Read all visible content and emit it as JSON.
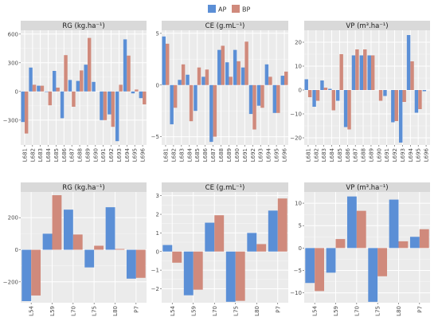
{
  "legend": {
    "items": [
      {
        "label": "AP",
        "color": "#5b8fd6"
      },
      {
        "label": "BP",
        "color": "#d08a7c"
      }
    ],
    "position": "top-center"
  },
  "chart_data": [
    {
      "type": "bar",
      "title": "RG (kg.ha⁻¹)",
      "categories": [
        "L681",
        "L682",
        "L683",
        "L684",
        "L685",
        "L686",
        "L687",
        "L688",
        "L689",
        "L690",
        "L691",
        "L692",
        "L693",
        "L694",
        "L695",
        "L696"
      ],
      "series": [
        {
          "name": "AP",
          "values": [
            -320,
            250,
            60,
            -5,
            215,
            -280,
            120,
            110,
            280,
            100,
            -300,
            -240,
            -520,
            545,
            -20,
            -70
          ]
        },
        {
          "name": "BP",
          "values": [
            -440,
            70,
            60,
            -145,
            40,
            380,
            -160,
            220,
            560,
            0,
            -300,
            -370,
            70,
            375,
            20,
            -135
          ]
        }
      ],
      "ylim": [
        -560,
        640
      ],
      "yticks": [
        -300,
        0,
        300,
        600
      ],
      "grid": true
    },
    {
      "type": "bar",
      "title": "CE (g.mL⁻¹)",
      "categories": [
        "L681",
        "L682",
        "L683",
        "L684",
        "L685",
        "L686",
        "L687",
        "L688",
        "L689",
        "L690",
        "L691",
        "L692",
        "L693",
        "L694",
        "L695",
        "L696"
      ],
      "series": [
        {
          "name": "AP",
          "values": [
            4.7,
            -3.8,
            0.5,
            1.0,
            -2.5,
            0.8,
            -5.5,
            3.4,
            2.2,
            3.4,
            1.7,
            -2.8,
            -2.0,
            2.0,
            -2.7,
            0.9
          ]
        },
        {
          "name": "BP",
          "values": [
            4.0,
            -2.2,
            2.0,
            -3.5,
            1.7,
            1.5,
            -5.0,
            3.8,
            0.8,
            2.3,
            4.2,
            -4.3,
            -2.2,
            0.8,
            -2.7,
            1.3
          ]
        }
      ],
      "ylim": [
        -5.8,
        5.3
      ],
      "yticks": [
        -5,
        0,
        5
      ],
      "grid": true
    },
    {
      "type": "bar",
      "title": "VP (m³.ha⁻¹)",
      "categories": [
        "L681",
        "L682",
        "L683",
        "L684",
        "L685",
        "L686",
        "L687",
        "L688",
        "L689",
        "L690",
        "L691",
        "L692",
        "L693",
        "L694",
        "L695",
        "L696"
      ],
      "series": [
        {
          "name": "AP",
          "values": [
            4.5,
            -7.0,
            4.0,
            0.5,
            -4.5,
            -15.5,
            14.5,
            14.5,
            14.5,
            0.0,
            -2.5,
            -13.5,
            -22.0,
            23.0,
            -9.5,
            -0.5
          ]
        },
        {
          "name": "BP",
          "values": [
            -3.0,
            -4.5,
            1.0,
            -8.5,
            15.0,
            -16.5,
            17.0,
            17.0,
            14.5,
            -4.5,
            0.0,
            -13.0,
            -5.0,
            12.0,
            -8.0,
            0.0
          ]
        }
      ],
      "ylim": [
        -23,
        25
      ],
      "yticks": [
        -20,
        -10,
        0,
        10,
        20
      ],
      "grid": true
    },
    {
      "type": "bar",
      "title": "RG (kg.ha⁻¹)",
      "categories": [
        "L54",
        "L59",
        "L70",
        "L75",
        "L80",
        "P7"
      ],
      "series": [
        {
          "name": "AP",
          "values": [
            -320,
            100,
            250,
            -110,
            265,
            -180
          ]
        },
        {
          "name": "BP",
          "values": [
            -285,
            340,
            95,
            25,
            5,
            -175
          ]
        }
      ],
      "ylim": [
        -330,
        360
      ],
      "yticks": [
        -200,
        0,
        200
      ],
      "grid": true
    },
    {
      "type": "bar",
      "title": "CE (g.mL⁻¹)",
      "categories": [
        "L54",
        "L59",
        "L70",
        "L75",
        "L80",
        "P7"
      ],
      "series": [
        {
          "name": "AP",
          "values": [
            0.35,
            -2.35,
            1.55,
            -2.7,
            1.0,
            2.2
          ]
        },
        {
          "name": "BP",
          "values": [
            -0.6,
            -2.05,
            1.95,
            -2.65,
            0.4,
            2.85
          ]
        }
      ],
      "ylim": [
        -2.75,
        3.2
      ],
      "yticks": [
        -2,
        -1,
        0,
        1,
        2,
        3
      ],
      "grid": true
    },
    {
      "type": "bar",
      "title": "VP (m³.ha⁻¹)",
      "categories": [
        "L54",
        "L59",
        "L70",
        "L75",
        "L80",
        "P7"
      ],
      "series": [
        {
          "name": "AP",
          "values": [
            -7.8,
            -5.5,
            11.5,
            -12.0,
            10.8,
            2.5
          ]
        },
        {
          "name": "BP",
          "values": [
            -9.6,
            2.0,
            8.3,
            -6.3,
            1.5,
            4.2
          ]
        }
      ],
      "ylim": [
        -12.2,
        12.5
      ],
      "yticks": [
        -10,
        -5,
        0,
        5,
        10
      ],
      "grid": true
    }
  ]
}
